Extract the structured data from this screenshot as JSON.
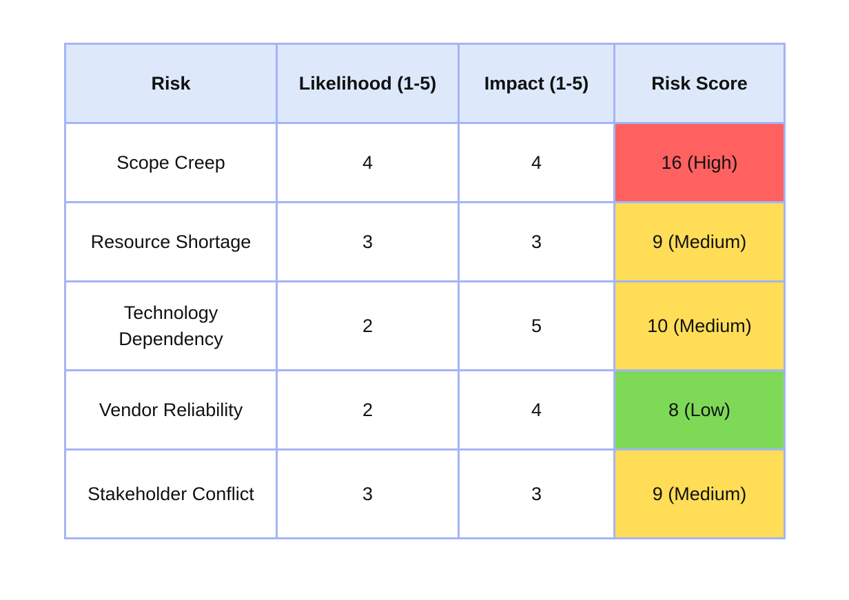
{
  "table": {
    "header": [
      "Risk",
      "Likelihood (1-5)",
      "Impact (1-5)",
      "Risk Score"
    ],
    "rows": [
      {
        "cells": [
          "Scope Creep",
          4,
          4,
          "16 (High)"
        ],
        "color": "#ff6161"
      },
      {
        "cells": [
          "Resource Shortage",
          3,
          3,
          "9 (Medium)"
        ],
        "color": "#ffdd57"
      },
      {
        "cells": [
          "Technology Dependency",
          2,
          5,
          "10 (Medium)"
        ],
        "color": "#ffdd57"
      },
      {
        "cells": [
          "Vendor Reliability",
          2,
          4,
          "8 (Low)"
        ],
        "color": "#7ed957"
      },
      {
        "cells": [
          "Stakeholder Conflict",
          3,
          3,
          "9 (Medium)"
        ],
        "color": "#ffdd57"
      }
    ]
  }
}
